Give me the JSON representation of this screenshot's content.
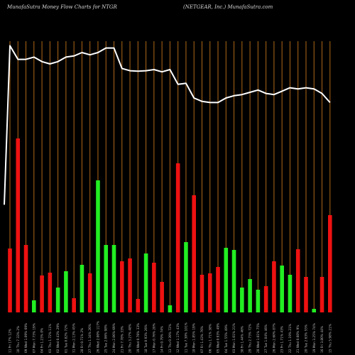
{
  "header": {
    "left": "MunafaSutra  Money Flow  Charts for NTGR",
    "right": "(NETGEAR, Inc.) MunafaSutra.com"
  },
  "colors": {
    "background": "#000000",
    "up": "#22ee22",
    "down": "#ee1111",
    "gridline": "#b06818",
    "price_line": "#ffffff"
  },
  "chart_data": {
    "type": "bar",
    "title": "MunafaSutra  Money Flow  Charts for NTGR",
    "subtitle": "(NETGEAR, Inc.) MunafaSutra.com",
    "categories": [
      "11 Fri 17% 12%",
      "10 Thu 7.33% 2%",
      "09 Wed 1.09% 69%",
      "07 Mon 7.73% 19%",
      "04 Fri 1.23% 0%",
      "03 Thu 1.72% 11%",
      "02 Wed 0.43% 29%",
      "01 Tue 0.82% 72%",
      "31 Mon 2.13% 45%",
      "28 Fri 0.71% 2%",
      "27 Thu 1.34% 26%",
      "26 Wed 2.00% 117%",
      "25 Tue 2.06% 98%",
      "24 Mon 2.06% 69%",
      "21 Fri 7.78% 33%",
      "20 Thu 3.27% 48%",
      "19 Wed 0.76% 33%",
      "18 Tue 0.93% 26%",
      "17 Mon 0.76% 20%",
      "14 Fri 0.79% 74%",
      "13 Thu 0.39% 72%",
      "12 Wed 1.17% 43%",
      "11 Tue 7.30% 101%",
      "10 Mon 1.85% 19%",
      "07 Fri 1.43% 76%",
      "06 Thu 1.71% 38%",
      "05 Wed 0.93% 49%",
      "04 Tue 1.55% 49%",
      "03 Mon 1.01% 21%",
      "30 Fri 1.44% 46%",
      "29 Thu 2.73% 72%",
      "28 Wed 1.01% 75%",
      "27 Tue 1.04% 46%",
      "26 Mon 2.60% 87%",
      "23 Fri 1.71% 43%",
      "22 Thu 1.19% 21%",
      "21 Wed 0.60% 9%",
      "20 Tue 2.63% 55%",
      "19 Mon 3.25% 74%",
      "16 Fri 3.80% 44%",
      "15 Thu 5.98% 21%"
    ],
    "values": [
      90,
      245,
      95,
      17,
      52,
      56,
      35,
      58,
      20,
      67,
      55,
      186,
      95,
      95,
      72,
      76,
      19,
      83,
      70,
      43,
      10,
      210,
      99,
      165,
      53,
      55,
      64,
      91,
      88,
      35,
      47,
      32,
      37,
      72,
      66,
      53,
      89,
      50,
      5,
      50,
      137
    ],
    "colors": [
      "down",
      "down",
      "down",
      "up",
      "down",
      "down",
      "up",
      "up",
      "down",
      "up",
      "down",
      "up",
      "up",
      "up",
      "down",
      "down",
      "down",
      "up",
      "down",
      "down",
      "up",
      "down",
      "up",
      "down",
      "down",
      "down",
      "down",
      "up",
      "up",
      "up",
      "up",
      "up",
      "down",
      "down",
      "up",
      "up",
      "down",
      "down",
      "up",
      "down",
      "down"
    ],
    "ylim": [
      0,
      260
    ],
    "price_line": {
      "values": [
        98,
        92,
        92,
        93,
        91,
        90,
        91,
        93,
        93.5,
        95,
        94,
        95,
        97,
        97,
        88,
        87,
        86.8,
        87,
        87.5,
        86.5,
        87.5,
        81,
        81.5,
        75,
        73.5,
        73,
        73,
        75,
        76,
        76.5,
        77.5,
        78.5,
        77,
        76.5,
        78,
        79.5,
        79,
        79.5,
        79,
        77,
        73
      ],
      "start_value": 28,
      "range": [
        40,
        100
      ]
    },
    "grid": "vertical",
    "legend": "none"
  }
}
